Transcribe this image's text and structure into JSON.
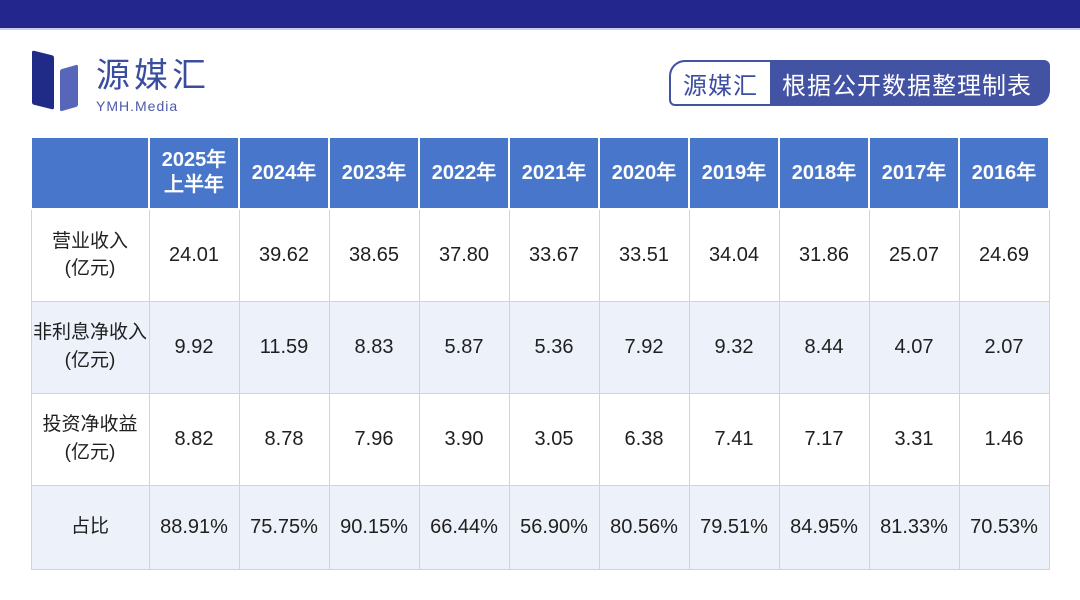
{
  "logo": {
    "name": "源媒汇",
    "subtitle": "YMH.Media"
  },
  "credit_badge": {
    "brand": "源媒汇",
    "text": "根据公开数据整理制表"
  },
  "colors": {
    "accent_bar": "#23278d",
    "table_header": "#4876cb",
    "band_row": "#edf1fa",
    "badge": "#4353a4",
    "logo_dark": "#202b87",
    "logo_light": "#5766b8"
  },
  "chart_data": {
    "type": "table",
    "columns": [
      "",
      "2025年\n上半年",
      "2024年",
      "2023年",
      "2022年",
      "2021年",
      "2020年",
      "2019年",
      "2018年",
      "2017年",
      "2016年"
    ],
    "rows": [
      {
        "label": "营业收入\n(亿元)",
        "values": [
          "24.01",
          "39.62",
          "38.65",
          "37.80",
          "33.67",
          "33.51",
          "34.04",
          "31.86",
          "25.07",
          "24.69"
        ]
      },
      {
        "label": "非利息净收入\n(亿元)",
        "values": [
          "9.92",
          "11.59",
          "8.83",
          "5.87",
          "5.36",
          "7.92",
          "9.32",
          "8.44",
          "4.07",
          "2.07"
        ]
      },
      {
        "label": "投资净收益\n(亿元)",
        "values": [
          "8.82",
          "8.78",
          "7.96",
          "3.90",
          "3.05",
          "6.38",
          "7.41",
          "7.17",
          "3.31",
          "1.46"
        ]
      },
      {
        "label": "占比",
        "values": [
          "88.91%",
          "75.75%",
          "90.15%",
          "66.44%",
          "56.90%",
          "80.56%",
          "79.51%",
          "84.95%",
          "81.33%",
          "70.53%"
        ]
      }
    ]
  }
}
